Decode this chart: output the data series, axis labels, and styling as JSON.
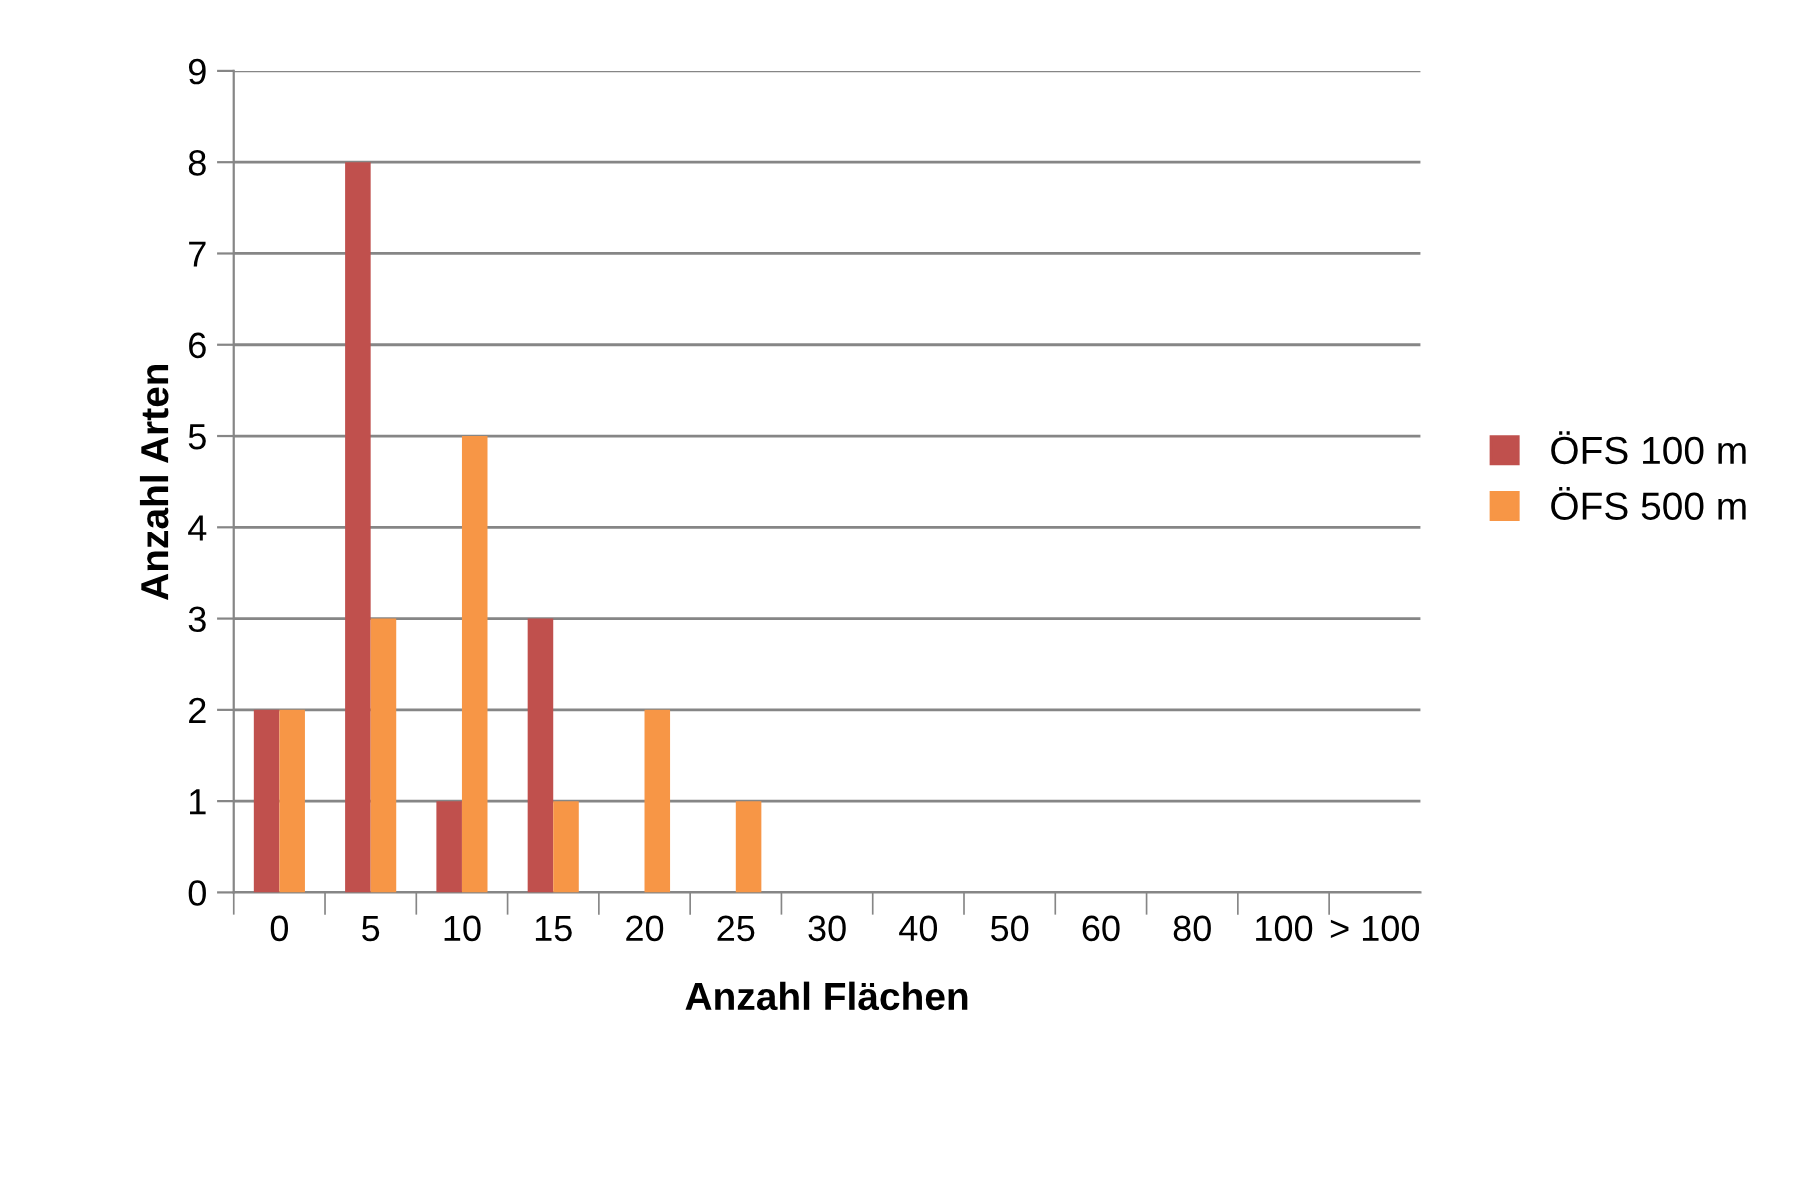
{
  "chart_data": {
    "type": "bar",
    "xlabel": "Anzahl Flächen",
    "ylabel": "Anzahl Arten",
    "categories": [
      "0",
      "5",
      "10",
      "15",
      "20",
      "25",
      "30",
      "40",
      "50",
      "60",
      "80",
      "100",
      "> 100"
    ],
    "series": [
      {
        "name": "ÖFS 100 m",
        "color": "#c0504d",
        "values": [
          2,
          8,
          1,
          3,
          0,
          0,
          0,
          0,
          0,
          0,
          0,
          0,
          0
        ]
      },
      {
        "name": "ÖFS 500 m",
        "color": "#f79646",
        "values": [
          2,
          3,
          5,
          1,
          2,
          1,
          0,
          0,
          0,
          0,
          0,
          0,
          0
        ]
      }
    ],
    "ylim": [
      0,
      9
    ],
    "yticks": [
      0,
      1,
      2,
      3,
      4,
      5,
      6,
      7,
      8,
      9
    ],
    "grid": "y",
    "legend": "right"
  }
}
